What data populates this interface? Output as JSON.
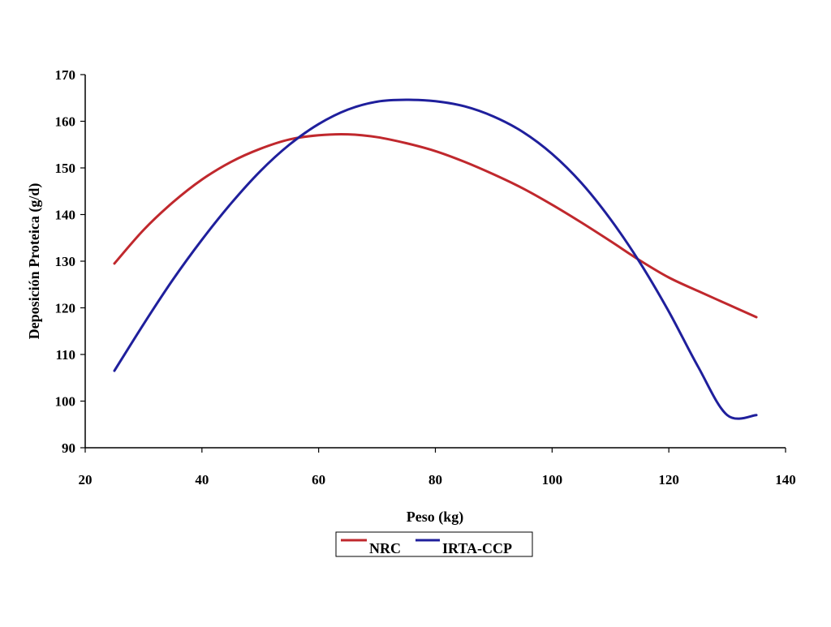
{
  "chart_data": {
    "type": "line",
    "title": "",
    "xlabel": "Peso (kg)",
    "ylabel": "Deposición Proteica (g/d)",
    "xlim": [
      20,
      140
    ],
    "ylim": [
      90,
      170
    ],
    "x_ticks": [
      20,
      40,
      60,
      80,
      100,
      120,
      140
    ],
    "y_ticks": [
      90,
      100,
      110,
      120,
      130,
      140,
      150,
      160,
      170
    ],
    "grid": false,
    "legend_position": "bottom-center",
    "series": [
      {
        "name": "NRC",
        "color": "#c0282d",
        "x": [
          25,
          30,
          35,
          40,
          45,
          50,
          55,
          60,
          65,
          70,
          75,
          80,
          85,
          90,
          95,
          100,
          105,
          110,
          115,
          120,
          125,
          130,
          135
        ],
        "y": [
          129.5,
          136.7,
          142.6,
          147.5,
          151.3,
          154.1,
          156.1,
          157.0,
          157.2,
          156.6,
          155.3,
          153.6,
          151.3,
          148.6,
          145.6,
          142.1,
          138.3,
          134.3,
          130.2,
          126.5,
          123.6,
          120.8,
          118.0
        ]
      },
      {
        "name": "IRTA-CCP",
        "color": "#1f1f9c",
        "x": [
          25,
          30,
          35,
          40,
          45,
          50,
          55,
          60,
          65,
          70,
          75,
          80,
          85,
          90,
          95,
          100,
          105,
          110,
          115,
          120,
          125,
          130,
          135
        ],
        "y": [
          106.5,
          116.5,
          126.0,
          134.6,
          142.4,
          149.3,
          155.0,
          159.4,
          162.5,
          164.2,
          164.6,
          164.3,
          163.2,
          161.0,
          157.7,
          153.0,
          146.8,
          139.0,
          129.8,
          119.2,
          107.4,
          97.0,
          97.0
        ]
      }
    ]
  }
}
